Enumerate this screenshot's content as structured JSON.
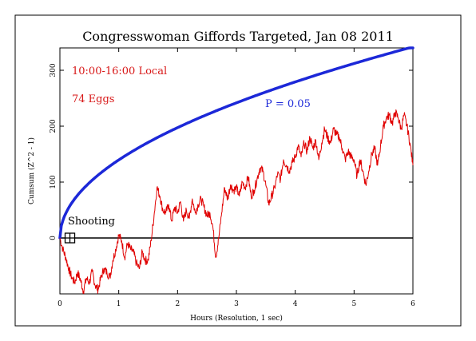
{
  "chart_data": {
    "type": "line",
    "title": "Congresswoman Giffords Targeted, Jan 08 2011",
    "xlabel": "Hours (Resolution, 1 sec)",
    "ylabel": "Cumsum (Z^2 - 1)",
    "xlim": [
      0,
      6
    ],
    "ylim": [
      -100,
      340
    ],
    "x_ticks": [
      0,
      1,
      2,
      3,
      4,
      5,
      6
    ],
    "y_ticks": [
      0,
      100,
      200,
      300
    ],
    "annotations": {
      "time_window": "10:00-16:00 Local",
      "eggs": "74 Eggs",
      "p_label": "P = 0.05",
      "event": "Shooting"
    },
    "event_marker_x": 0.17,
    "colors": {
      "data": "#e00000",
      "envelope": "#1c28d8",
      "text_red": "#d81818",
      "text_blue": "#1c28d8"
    },
    "series": [
      {
        "name": "P = 0.05",
        "role": "significance envelope",
        "formula": "1.645 * sqrt(2 * 3600 * x)",
        "x": [
          0,
          0.05,
          0.1,
          0.25,
          0.5,
          1,
          1.5,
          2,
          2.5,
          3,
          3.5,
          4,
          4.5,
          5,
          5.5,
          6
        ],
        "values": [
          0,
          31,
          44,
          70,
          99,
          140,
          171,
          197,
          221,
          242,
          261,
          279,
          296,
          312,
          327,
          342
        ]
      },
      {
        "name": "Cumsum",
        "role": "data",
        "x": [
          0,
          0.05,
          0.1,
          0.15,
          0.2,
          0.25,
          0.3,
          0.35,
          0.4,
          0.45,
          0.5,
          0.55,
          0.6,
          0.65,
          0.7,
          0.75,
          0.8,
          0.85,
          0.9,
          0.95,
          1.0,
          1.05,
          1.1,
          1.15,
          1.2,
          1.25,
          1.3,
          1.35,
          1.4,
          1.45,
          1.5,
          1.55,
          1.6,
          1.65,
          1.7,
          1.75,
          1.8,
          1.85,
          1.9,
          1.95,
          2.0,
          2.05,
          2.1,
          2.15,
          2.2,
          2.25,
          2.3,
          2.35,
          2.4,
          2.45,
          2.5,
          2.55,
          2.6,
          2.65,
          2.7,
          2.75,
          2.8,
          2.85,
          2.9,
          2.95,
          3.0,
          3.05,
          3.1,
          3.15,
          3.2,
          3.25,
          3.3,
          3.35,
          3.4,
          3.45,
          3.5,
          3.55,
          3.6,
          3.65,
          3.7,
          3.75,
          3.8,
          3.85,
          3.9,
          3.95,
          4.0,
          4.05,
          4.1,
          4.15,
          4.2,
          4.25,
          4.3,
          4.35,
          4.4,
          4.45,
          4.5,
          4.55,
          4.6,
          4.65,
          4.7,
          4.75,
          4.8,
          4.85,
          4.9,
          4.95,
          5.0,
          5.05,
          5.1,
          5.15,
          5.2,
          5.25,
          5.3,
          5.35,
          5.4,
          5.45,
          5.5,
          5.55,
          5.6,
          5.65,
          5.7,
          5.75,
          5.8,
          5.85,
          5.9,
          5.95,
          6.0
        ],
        "values": [
          0,
          -20,
          -35,
          -55,
          -70,
          -80,
          -62,
          -75,
          -95,
          -72,
          -80,
          -60,
          -85,
          -92,
          -70,
          -55,
          -62,
          -70,
          -40,
          -20,
          5,
          -5,
          -35,
          -10,
          -20,
          -25,
          -45,
          -55,
          -25,
          -40,
          -40,
          -5,
          40,
          90,
          75,
          50,
          45,
          60,
          30,
          55,
          45,
          65,
          30,
          50,
          35,
          70,
          45,
          60,
          70,
          55,
          40,
          45,
          20,
          -35,
          0,
          45,
          90,
          70,
          95,
          85,
          90,
          75,
          100,
          90,
          110,
          75,
          85,
          105,
          125,
          120,
          95,
          60,
          75,
          90,
          115,
          105,
          140,
          130,
          120,
          135,
          145,
          165,
          145,
          170,
          155,
          180,
          160,
          175,
          140,
          170,
          195,
          180,
          170,
          195,
          185,
          180,
          160,
          140,
          155,
          145,
          140,
          110,
          140,
          120,
          95,
          120,
          150,
          160,
          130,
          165,
          200,
          215,
          220,
          205,
          225,
          215,
          195,
          220,
          200,
          170,
          130
        ]
      }
    ]
  }
}
